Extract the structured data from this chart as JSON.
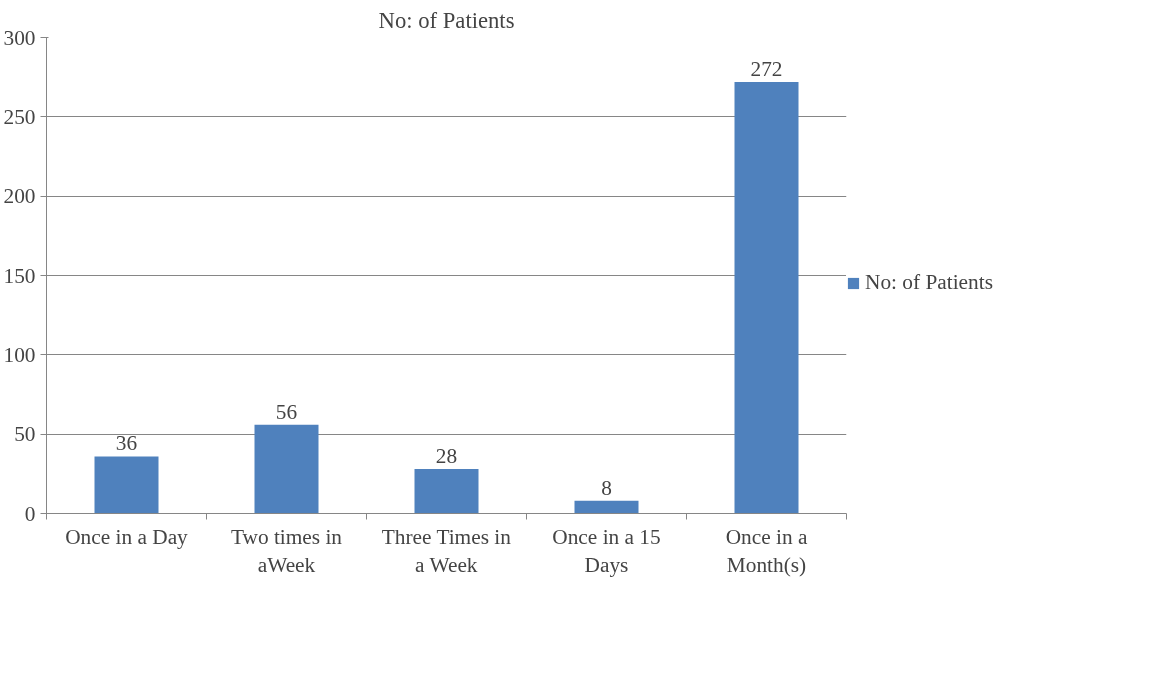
{
  "chart_data": {
    "type": "bar",
    "title": "No: of Patients",
    "categories": [
      "Once in a Day",
      "Two times in aWeek",
      "Three Times in a Week",
      "Once in a 15 Days",
      "Once in a Month(s)"
    ],
    "series": [
      {
        "name": "No: of Patients",
        "color": "#4f81bd",
        "values": [
          36,
          56,
          28,
          8,
          272
        ]
      }
    ],
    "ylim": [
      0,
      300
    ],
    "yticks": [
      0,
      50,
      100,
      150,
      200,
      250,
      300
    ],
    "grid": "y",
    "legend": "right",
    "data_labels": true
  }
}
